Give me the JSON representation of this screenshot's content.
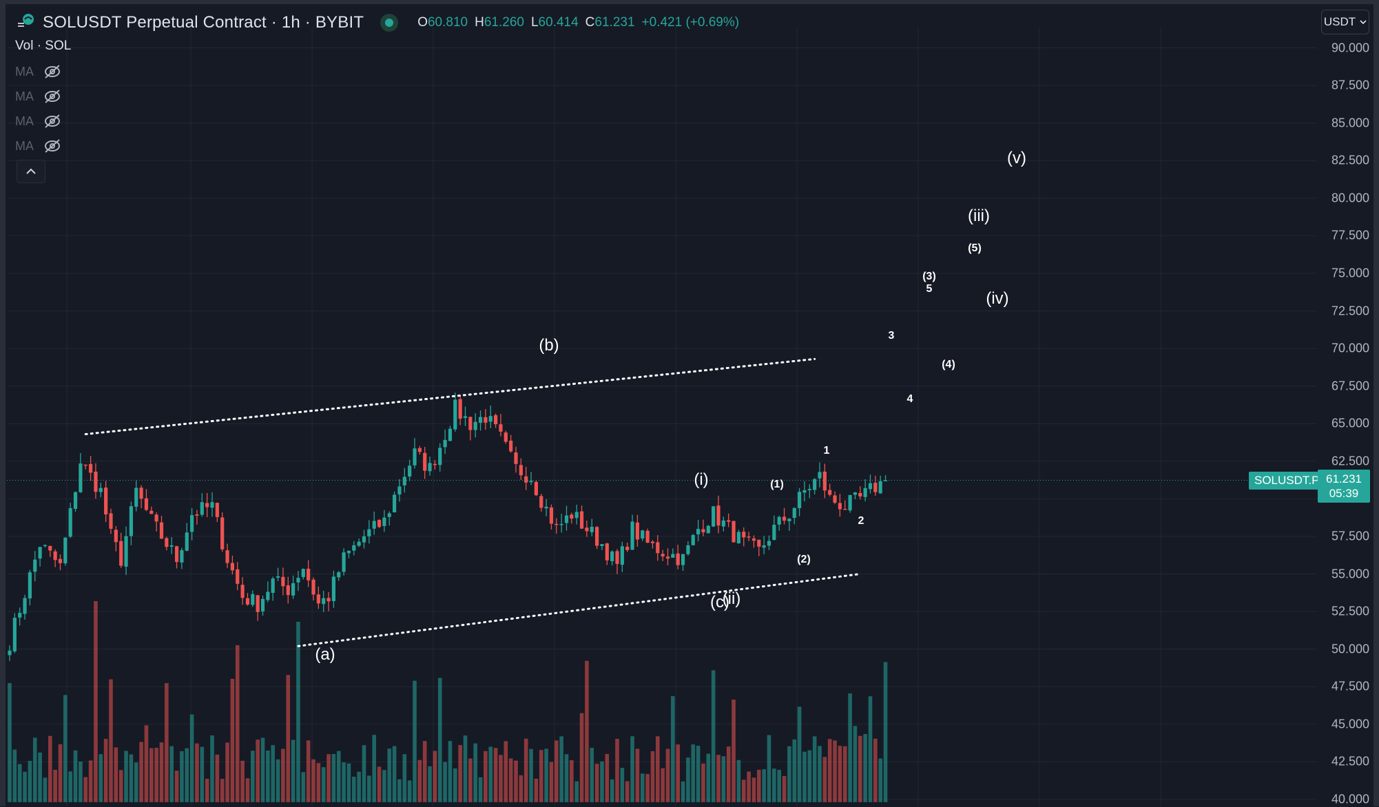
{
  "header": {
    "title": "SOLUSDT Perpetual Contract · 1h · BYBIT",
    "ohlc": [
      {
        "key": "O",
        "value": "60.810"
      },
      {
        "key": "H",
        "value": "61.260"
      },
      {
        "key": "L",
        "value": "60.414"
      },
      {
        "key": "C",
        "value": "61.231"
      }
    ],
    "change": "+0.421 (+0.69%)"
  },
  "legend": {
    "volume": "Vol · SOL",
    "ma_label": "MA"
  },
  "currency_selector": "USDT",
  "price_axis": {
    "ticks": [
      "90.000",
      "87.500",
      "85.000",
      "82.500",
      "80.000",
      "77.500",
      "75.000",
      "72.500",
      "70.000",
      "67.500",
      "65.000",
      "62.500",
      "57.500",
      "55.000",
      "52.500",
      "50.000",
      "47.500",
      "45.000",
      "42.500",
      "40.000"
    ]
  },
  "last_price": {
    "symbol": "SOLUSDT.P",
    "price": "61.231",
    "countdown": "05:39"
  },
  "wave_labels": {
    "a": "(a)",
    "b": "(b)",
    "c": "(c)",
    "i": "(i)",
    "ii": "(ii)",
    "iii": "(iii)",
    "iv": "(iv)",
    "v": "(v)",
    "p1": "(1)",
    "p2": "(2)",
    "p3": "(3)",
    "p4": "(4)",
    "p5": "(5)",
    "n1": "1",
    "n2": "2",
    "n3": "3",
    "n4": "4",
    "n5": "5"
  },
  "colors": {
    "background": "#161a25",
    "up": "#26a69a",
    "down": "#ef5350",
    "grid": "#232733",
    "annotation": "#ffffff"
  },
  "chart_data": {
    "type": "candlestick",
    "symbol": "SOLUSDT.P",
    "timeframe": "1h",
    "ylim": [
      40,
      90
    ],
    "path": [
      [
        0,
        50.5
      ],
      [
        6,
        57
      ],
      [
        10,
        55.5
      ],
      [
        14,
        62.5
      ],
      [
        18,
        60.5
      ],
      [
        20,
        57.5
      ],
      [
        22,
        56
      ],
      [
        25,
        60.5
      ],
      [
        28,
        58.5
      ],
      [
        31,
        57
      ],
      [
        33,
        56
      ],
      [
        36,
        59
      ],
      [
        40,
        59.5
      ],
      [
        43,
        56
      ],
      [
        46,
        53.5
      ],
      [
        49,
        53
      ],
      [
        52,
        54.5
      ],
      [
        55,
        54
      ],
      [
        58,
        55.5
      ],
      [
        61,
        53
      ],
      [
        63,
        53.5
      ],
      [
        66,
        56
      ],
      [
        70,
        57.5
      ],
      [
        74,
        58.5
      ],
      [
        77,
        61
      ],
      [
        80,
        63
      ],
      [
        83,
        62
      ],
      [
        85,
        63.5
      ],
      [
        88,
        66
      ],
      [
        91,
        65
      ],
      [
        94,
        65.5
      ],
      [
        97,
        64
      ],
      [
        100,
        62
      ],
      [
        103,
        61.5
      ],
      [
        105,
        60
      ],
      [
        108,
        58
      ],
      [
        111,
        59
      ],
      [
        114,
        58
      ],
      [
        117,
        57
      ],
      [
        120,
        55.5
      ],
      [
        123,
        58
      ],
      [
        126,
        57
      ],
      [
        129,
        56.5
      ],
      [
        133,
        56
      ],
      [
        136,
        58
      ],
      [
        139,
        59
      ],
      [
        142,
        58
      ],
      [
        145,
        57
      ],
      [
        148,
        56.5
      ],
      [
        151,
        58
      ],
      [
        154,
        59
      ],
      [
        157,
        60.5
      ],
      [
        160,
        61.5
      ],
      [
        162,
        60
      ],
      [
        165,
        59.5
      ],
      [
        168,
        60
      ],
      [
        171,
        60.8
      ],
      [
        173,
        61.2
      ]
    ],
    "volume_scale_max": 4000,
    "trendlines": [
      {
        "from": [
          15,
          64.3
        ],
        "to": [
          159,
          69.3
        ],
        "style": "dotted"
      },
      {
        "from": [
          57,
          50.2
        ],
        "to": [
          168,
          55
        ],
        "style": "dotted"
      }
    ]
  }
}
